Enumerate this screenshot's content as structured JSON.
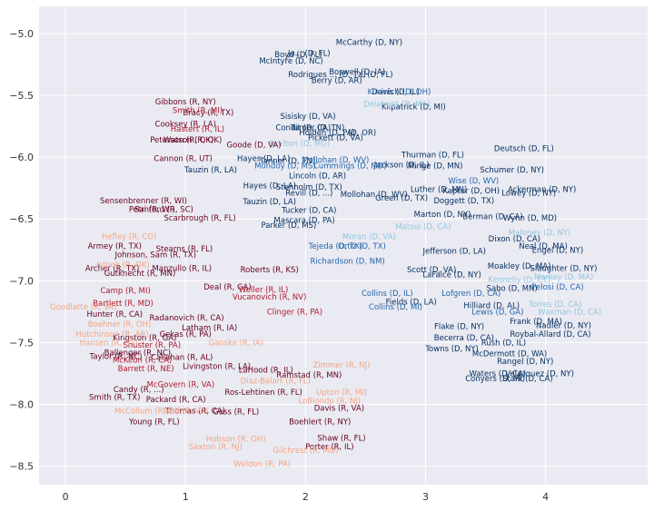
{
  "chart_data": {
    "type": "scatter",
    "title": "",
    "xlabel": "",
    "ylabel": "",
    "xlim": [
      -0.22,
      4.85
    ],
    "ylim": [
      -8.65,
      -4.78
    ],
    "xticks": [
      "0",
      "1",
      "2",
      "3",
      "4"
    ],
    "yticks": [
      "−5.0",
      "−5.5",
      "−6.0",
      "−6.5",
      "−7.0",
      "−7.5",
      "−8.0",
      "−8.5"
    ],
    "grid": true,
    "background": "#eaeaf2",
    "colors": {
      "dark_red": "#67001f",
      "mid_red": "#b2182b",
      "light_red": "#f4a582",
      "dark_blue": "#053061",
      "mid_blue": "#2166ac",
      "light_blue": "#92c5de"
    },
    "points": [
      {
        "label": "McCarthy (D, NY)",
        "x": 2.53,
        "y": -5.07,
        "color": "dark_blue"
      },
      {
        "label": "Boyd (D, FL)",
        "x": 1.94,
        "y": -5.17,
        "color": "dark_blue"
      },
      {
        "label": "Jo... (D, FL)",
        "x": 2.03,
        "y": -5.16,
        "color": "dark_blue"
      },
      {
        "label": "McIntyre (D, NC)",
        "x": 1.88,
        "y": -5.22,
        "color": "dark_blue"
      },
      {
        "label": "Rodrigues ... (D, TX)",
        "x": 2.18,
        "y": -5.33,
        "color": "dark_blue"
      },
      {
        "label": "Berry (D, AR)",
        "x": 2.26,
        "y": -5.38,
        "color": "dark_blue"
      },
      {
        "label": "Boswell (D, IA)",
        "x": 2.43,
        "y": -5.31,
        "color": "dark_blue"
      },
      {
        "label": "... (D, FL)",
        "x": 2.58,
        "y": -5.33,
        "color": "dark_blue"
      },
      {
        "label": "Davis (D, IL)",
        "x": 2.75,
        "y": -5.47,
        "color": "dark_blue"
      },
      {
        "label": "Kilpatrick (D, MI)",
        "x": 2.9,
        "y": -5.59,
        "color": "dark_blue"
      },
      {
        "label": "Sisisky (D, VA)",
        "x": 2.02,
        "y": -5.67,
        "color": "dark_blue"
      },
      {
        "label": "Condit (D, CA)",
        "x": 1.98,
        "y": -5.76,
        "color": "dark_blue"
      },
      {
        "label": "Turner (D, TN)",
        "x": 2.1,
        "y": -5.76,
        "color": "dark_blue"
      },
      {
        "label": "Holden (D, PA)",
        "x": 2.18,
        "y": -5.8,
        "color": "dark_blue"
      },
      {
        "label": "... (D, OR)",
        "x": 2.43,
        "y": -5.8,
        "color": "dark_blue"
      },
      {
        "label": "Pickett (D, VA)",
        "x": 2.25,
        "y": -5.84,
        "color": "dark_blue"
      },
      {
        "label": "Deutsch (D, FL)",
        "x": 3.82,
        "y": -5.93,
        "color": "dark_blue"
      },
      {
        "label": "Thurman (D, FL)",
        "x": 3.06,
        "y": -5.98,
        "color": "dark_blue"
      },
      {
        "label": "Hayes (D, LA)",
        "x": 1.65,
        "y": -6.01,
        "color": "dark_blue"
      },
      {
        "label": "Tanner (D, TN)",
        "x": 1.85,
        "y": -6.03,
        "color": "dark_blue"
      },
      {
        "label": "Minge (D, MN)",
        "x": 3.08,
        "y": -6.07,
        "color": "dark_blue"
      },
      {
        "label": "Jackson (D, IL)",
        "x": 2.8,
        "y": -6.06,
        "color": "dark_blue"
      },
      {
        "label": "Schumer (D, NY)",
        "x": 3.72,
        "y": -6.1,
        "color": "dark_blue"
      },
      {
        "label": "Tauzin (R, LA)",
        "x": 1.21,
        "y": -6.1,
        "color": "dark_blue"
      },
      {
        "label": "Lincoln (D, AR)",
        "x": 2.1,
        "y": -6.15,
        "color": "dark_blue"
      },
      {
        "label": "Hayes (D, LA)",
        "x": 1.7,
        "y": -6.23,
        "color": "dark_blue"
      },
      {
        "label": "Stenholm (D, TX)",
        "x": 2.03,
        "y": -6.24,
        "color": "dark_blue"
      },
      {
        "label": "Luther (D, MN)",
        "x": 3.11,
        "y": -6.26,
        "color": "dark_blue"
      },
      {
        "label": "Kaptur (D, OH)",
        "x": 3.38,
        "y": -6.27,
        "color": "dark_blue"
      },
      {
        "label": "Ackerman (D, NY)",
        "x": 3.97,
        "y": -6.26,
        "color": "dark_blue"
      },
      {
        "label": "Lowey (D, NY)",
        "x": 3.86,
        "y": -6.29,
        "color": "dark_blue"
      },
      {
        "label": "Revill (D, ...)",
        "x": 2.03,
        "y": -6.29,
        "color": "dark_blue"
      },
      {
        "label": "Mollohan (D, WV)",
        "x": 2.57,
        "y": -6.3,
        "color": "dark_blue"
      },
      {
        "label": "Green (D, TX)",
        "x": 2.8,
        "y": -6.33,
        "color": "dark_blue"
      },
      {
        "label": "Doggett (D, TX)",
        "x": 3.32,
        "y": -6.35,
        "color": "dark_blue"
      },
      {
        "label": "Tauzin (D, LA)",
        "x": 1.7,
        "y": -6.36,
        "color": "dark_blue"
      },
      {
        "label": "Tucker (D, CA)",
        "x": 2.03,
        "y": -6.43,
        "color": "dark_blue"
      },
      {
        "label": "Marton (D, NY)",
        "x": 3.14,
        "y": -6.46,
        "color": "dark_blue"
      },
      {
        "label": "Berman (D, CA)",
        "x": 3.56,
        "y": -6.48,
        "color": "dark_blue"
      },
      {
        "label": "Wynn (D, MD)",
        "x": 3.87,
        "y": -6.49,
        "color": "dark_blue"
      },
      {
        "label": "Mascara (D, PA)",
        "x": 1.99,
        "y": -6.51,
        "color": "dark_blue"
      },
      {
        "label": "Parker (D, MS)",
        "x": 1.86,
        "y": -6.55,
        "color": "dark_blue"
      },
      {
        "label": "Jefferson (D, LA)",
        "x": 3.24,
        "y": -6.76,
        "color": "dark_blue"
      },
      {
        "label": "Dixon (D, CA)",
        "x": 3.74,
        "y": -6.66,
        "color": "dark_blue"
      },
      {
        "label": "Neal (D, MA)",
        "x": 3.98,
        "y": -6.72,
        "color": "dark_blue"
      },
      {
        "label": "Engel (D, NY)",
        "x": 4.1,
        "y": -6.75,
        "color": "dark_blue"
      },
      {
        "label": "Scott (D, VA)",
        "x": 3.05,
        "y": -6.91,
        "color": "dark_blue"
      },
      {
        "label": "LaFalce (D, NY)",
        "x": 3.22,
        "y": -6.95,
        "color": "dark_blue"
      },
      {
        "label": "Moakley (D, MA)",
        "x": 3.78,
        "y": -6.88,
        "color": "dark_blue"
      },
      {
        "label": "Slaughter (D, NY)",
        "x": 4.15,
        "y": -6.9,
        "color": "dark_blue"
      },
      {
        "label": "Sabo (D, MN)",
        "x": 3.72,
        "y": -7.06,
        "color": "dark_blue"
      },
      {
        "label": "Fields (D, LA)",
        "x": 2.88,
        "y": -7.17,
        "color": "dark_blue"
      },
      {
        "label": "Hilliard (D, AL)",
        "x": 3.55,
        "y": -7.2,
        "color": "dark_blue"
      },
      {
        "label": "Frank (D, MA)",
        "x": 3.92,
        "y": -7.33,
        "color": "dark_blue"
      },
      {
        "label": "Nadler (D, NY)",
        "x": 4.15,
        "y": -7.36,
        "color": "dark_blue"
      },
      {
        "label": "Flake (D, NY)",
        "x": 3.28,
        "y": -7.37,
        "color": "dark_blue"
      },
      {
        "label": "Becerra (D, CA)",
        "x": 3.32,
        "y": -7.46,
        "color": "dark_blue"
      },
      {
        "label": "Roybal-Allard (D, CA)",
        "x": 4.04,
        "y": -7.43,
        "color": "dark_blue"
      },
      {
        "label": "Towns (D, NY)",
        "x": 3.22,
        "y": -7.55,
        "color": "dark_blue"
      },
      {
        "label": "Rush (D, IL)",
        "x": 3.65,
        "y": -7.5,
        "color": "dark_blue"
      },
      {
        "label": "McDermott (D, WA)",
        "x": 3.7,
        "y": -7.59,
        "color": "dark_blue"
      },
      {
        "label": "Rangel (D, NY)",
        "x": 3.83,
        "y": -7.65,
        "color": "dark_blue"
      },
      {
        "label": "Waters (D, CA)",
        "x": 3.6,
        "y": -7.75,
        "color": "dark_blue"
      },
      {
        "label": "Conyers (D, MI)",
        "x": 3.58,
        "y": -7.79,
        "color": "dark_blue"
      },
      {
        "label": "Velazquez (D, NY)",
        "x": 3.95,
        "y": -7.75,
        "color": "dark_blue"
      },
      {
        "label": "Stark (D, CA)",
        "x": 3.85,
        "y": -7.79,
        "color": "dark_blue"
      },
      {
        "label": "Kucinich (D, OH)",
        "x": 2.78,
        "y": -5.47,
        "color": "mid_blue"
      },
      {
        "label": "Mondoy (D, MS)",
        "x": 1.83,
        "y": -6.07,
        "color": "mid_blue"
      },
      {
        "label": "Cummings (D, MD)",
        "x": 2.37,
        "y": -6.07,
        "color": "mid_blue"
      },
      {
        "label": "Mollohan (D, WV)",
        "x": 2.25,
        "y": -6.02,
        "color": "mid_blue"
      },
      {
        "label": "Wise (D, WV)",
        "x": 3.4,
        "y": -6.19,
        "color": "mid_blue"
      },
      {
        "label": "Tejeda (D, TX)",
        "x": 2.25,
        "y": -6.72,
        "color": "mid_blue"
      },
      {
        "label": "Ortiz (D, TX)",
        "x": 2.47,
        "y": -6.72,
        "color": "mid_blue"
      },
      {
        "label": "Richardson (D, NM)",
        "x": 2.35,
        "y": -6.84,
        "color": "mid_blue"
      },
      {
        "label": "Collins (D, IL)",
        "x": 2.68,
        "y": -7.1,
        "color": "mid_blue"
      },
      {
        "label": "Collins (D, MI)",
        "x": 2.75,
        "y": -7.21,
        "color": "mid_blue"
      },
      {
        "label": "Lofgren (D, CA)",
        "x": 3.38,
        "y": -7.1,
        "color": "mid_blue"
      },
      {
        "label": "Pelosi (D, CA)",
        "x": 4.1,
        "y": -7.05,
        "color": "mid_blue"
      },
      {
        "label": "Lewis (D, GA)",
        "x": 3.6,
        "y": -7.25,
        "color": "mid_blue"
      },
      {
        "label": "Matsui (D, CA)",
        "x": 2.98,
        "y": -6.56,
        "color": "light_blue"
      },
      {
        "label": "Kennelly (D, CT)",
        "x": 3.78,
        "y": -6.99,
        "color": "light_blue"
      },
      {
        "label": "Markey (D, MA)",
        "x": 4.15,
        "y": -6.97,
        "color": "light_blue"
      },
      {
        "label": "Waxman (D, CA)",
        "x": 4.2,
        "y": -7.25,
        "color": "light_blue"
      },
      {
        "label": "Torres (D, CA)",
        "x": 4.08,
        "y": -7.19,
        "color": "light_blue"
      },
      {
        "label": "Maloney (D, NY)",
        "x": 3.95,
        "y": -6.61,
        "color": "light_blue"
      },
      {
        "label": "Delahunt (D, MA)",
        "x": 2.76,
        "y": -5.57,
        "color": "light_blue"
      },
      {
        "label": "Skelton (D, MO)",
        "x": 1.95,
        "y": -5.89,
        "color": "light_blue"
      },
      {
        "label": "Moran (D, VA)",
        "x": 2.53,
        "y": -6.64,
        "color": "light_blue"
      },
      {
        "label": "Gibbons (R, NY)",
        "x": 1.0,
        "y": -5.55,
        "color": "dark_red"
      },
      {
        "label": "Bracy (R, TX)",
        "x": 1.19,
        "y": -5.64,
        "color": "dark_red"
      },
      {
        "label": "Cooksey (R, LA)",
        "x": 1.0,
        "y": -5.73,
        "color": "dark_red"
      },
      {
        "label": "Peterson (R, OK)",
        "x": 0.97,
        "y": -5.86,
        "color": "dark_red"
      },
      {
        "label": "Watson (R, OK)",
        "x": 1.06,
        "y": -5.86,
        "color": "dark_red"
      },
      {
        "label": "Goode (D, VA)",
        "x": 1.57,
        "y": -5.9,
        "color": "dark_red"
      },
      {
        "label": "Cannon (R, UT)",
        "x": 0.98,
        "y": -6.01,
        "color": "dark_red"
      },
      {
        "label": "Sensenbrenner (R, WI)",
        "x": 0.65,
        "y": -6.35,
        "color": "dark_red"
      },
      {
        "label": "Petri (R, WI)",
        "x": 0.72,
        "y": -6.42,
        "color": "dark_red"
      },
      {
        "label": "Sanford (R, SC)",
        "x": 0.82,
        "y": -6.42,
        "color": "dark_red"
      },
      {
        "label": "Scarbrough (R, FL)",
        "x": 1.12,
        "y": -6.49,
        "color": "dark_red"
      },
      {
        "label": "Armey (R, TX)",
        "x": 0.41,
        "y": -6.72,
        "color": "dark_red"
      },
      {
        "label": "Stearns (R, FL)",
        "x": 0.99,
        "y": -6.74,
        "color": "dark_red"
      },
      {
        "label": "Johnson, Sam (R, TX)",
        "x": 0.75,
        "y": -6.79,
        "color": "dark_red"
      },
      {
        "label": "Archer (R, TX)",
        "x": 0.39,
        "y": -6.9,
        "color": "dark_red"
      },
      {
        "label": "Manzullo (R, IL)",
        "x": 0.97,
        "y": -6.9,
        "color": "dark_red"
      },
      {
        "label": "Gutknecht (R, MN)",
        "x": 0.62,
        "y": -6.94,
        "color": "dark_red"
      },
      {
        "label": "Roberts (R, KS)",
        "x": 1.7,
        "y": -6.91,
        "color": "dark_red"
      },
      {
        "label": "Deal (R, GA)",
        "x": 1.35,
        "y": -7.05,
        "color": "dark_red"
      },
      {
        "label": "Hunter (R, CA)",
        "x": 0.41,
        "y": -7.27,
        "color": "dark_red"
      },
      {
        "label": "Radanovich (R, CA)",
        "x": 1.01,
        "y": -7.3,
        "color": "dark_red"
      },
      {
        "label": "Latham (R, IA)",
        "x": 1.2,
        "y": -7.38,
        "color": "dark_red"
      },
      {
        "label": "Kingston (R, GA)",
        "x": 0.66,
        "y": -7.46,
        "color": "dark_red"
      },
      {
        "label": "Gekas (R, PA)",
        "x": 1.0,
        "y": -7.43,
        "color": "dark_red"
      },
      {
        "label": "Ballenger (R, NC)",
        "x": 0.6,
        "y": -7.58,
        "color": "dark_red"
      },
      {
        "label": "Callahan (R, AL)",
        "x": 0.97,
        "y": -7.62,
        "color": "dark_red"
      },
      {
        "label": "Taylor (R, NC)",
        "x": 0.42,
        "y": -7.61,
        "color": "dark_red"
      },
      {
        "label": "Livingston (R, LA)",
        "x": 1.26,
        "y": -7.69,
        "color": "dark_red"
      },
      {
        "label": "LaHood (R, IL)",
        "x": 1.67,
        "y": -7.72,
        "color": "dark_red"
      },
      {
        "label": "Ramstad (R, MN)",
        "x": 2.03,
        "y": -7.76,
        "color": "dark_red"
      },
      {
        "label": "Ros-Lehtinen (R, FL)",
        "x": 1.65,
        "y": -7.9,
        "color": "dark_red"
      },
      {
        "label": "Packard (R, CA)",
        "x": 0.92,
        "y": -7.96,
        "color": "dark_red"
      },
      {
        "label": "Smith (R, TX)",
        "x": 0.41,
        "y": -7.94,
        "color": "dark_red"
      },
      {
        "label": "Candy (R, ...)",
        "x": 0.61,
        "y": -7.88,
        "color": "dark_red"
      },
      {
        "label": "Thomas (R, CA)",
        "x": 1.08,
        "y": -8.05,
        "color": "dark_red"
      },
      {
        "label": "Goss (R, FL)",
        "x": 1.42,
        "y": -8.06,
        "color": "dark_red"
      },
      {
        "label": "Davis (R, VA)",
        "x": 2.28,
        "y": -8.03,
        "color": "dark_red"
      },
      {
        "label": "Young (R, FL)",
        "x": 0.74,
        "y": -8.14,
        "color": "dark_red"
      },
      {
        "label": "Boehlert (R, NY)",
        "x": 2.12,
        "y": -8.14,
        "color": "dark_red"
      },
      {
        "label": "Shaw (R, FL)",
        "x": 2.3,
        "y": -8.27,
        "color": "dark_red"
      },
      {
        "label": "Porter (R, IL)",
        "x": 2.2,
        "y": -8.34,
        "color": "dark_red"
      },
      {
        "label": "Smith (R, MI)",
        "x": 1.1,
        "y": -5.62,
        "color": "mid_red"
      },
      {
        "label": "Hastert (R, IL)",
        "x": 1.1,
        "y": -5.77,
        "color": "mid_red"
      },
      {
        "label": "Camp (R, MI)",
        "x": 0.5,
        "y": -7.08,
        "color": "mid_red"
      },
      {
        "label": "Bartlett (R, MD)",
        "x": 0.48,
        "y": -7.18,
        "color": "mid_red"
      },
      {
        "label": "Shuster (R, PA)",
        "x": 0.72,
        "y": -7.52,
        "color": "mid_red"
      },
      {
        "label": "McKeon (R, CA)",
        "x": 0.64,
        "y": -7.64,
        "color": "mid_red"
      },
      {
        "label": "Barrett (R, NE)",
        "x": 0.67,
        "y": -7.71,
        "color": "mid_red"
      },
      {
        "label": "McGovern (R, VA)",
        "x": 0.96,
        "y": -7.84,
        "color": "mid_red"
      },
      {
        "label": "Weller (R, IL)",
        "x": 1.65,
        "y": -7.07,
        "color": "mid_red"
      },
      {
        "label": "Vucanovich (R, NV)",
        "x": 1.7,
        "y": -7.13,
        "color": "mid_red"
      },
      {
        "label": "Clinger (R, PA)",
        "x": 1.91,
        "y": -7.25,
        "color": "mid_red"
      },
      {
        "label": "Hefley (R, CO)",
        "x": 0.53,
        "y": -6.64,
        "color": "light_red"
      },
      {
        "label": "Istook (R, OK)",
        "x": 0.48,
        "y": -6.87,
        "color": "light_red"
      },
      {
        "label": "Hutchinson (R, AR)",
        "x": 0.39,
        "y": -7.43,
        "color": "light_red"
      },
      {
        "label": "Hansen (R, UT)",
        "x": 0.36,
        "y": -7.5,
        "color": "light_red"
      },
      {
        "label": "Goodlatte (R, VA)",
        "x": 0.15,
        "y": -7.21,
        "color": "light_red"
      },
      {
        "label": "Boehner (R, OH)",
        "x": 0.45,
        "y": -7.35,
        "color": "light_red"
      },
      {
        "label": "Ganske (R, IA)",
        "x": 1.42,
        "y": -7.5,
        "color": "light_red"
      },
      {
        "label": "Zimmer (R, NJ)",
        "x": 2.3,
        "y": -7.68,
        "color": "light_red"
      },
      {
        "label": "Upton (R, MI)",
        "x": 2.3,
        "y": -7.9,
        "color": "light_red"
      },
      {
        "label": "Diaz-Balart (R, FL)",
        "x": 1.75,
        "y": -7.81,
        "color": "light_red"
      },
      {
        "label": "Hobson (R, OH)",
        "x": 1.42,
        "y": -8.28,
        "color": "light_red"
      },
      {
        "label": "Saxton (R, NJ)",
        "x": 1.25,
        "y": -8.34,
        "color": "light_red"
      },
      {
        "label": "Weldon (R, PA)",
        "x": 1.64,
        "y": -8.48,
        "color": "light_red"
      },
      {
        "label": "Gilchrest (R, MD)",
        "x": 2.0,
        "y": -8.37,
        "color": "light_red"
      },
      {
        "label": "McCollum (R, FL)",
        "x": 0.68,
        "y": -8.05,
        "color": "light_red"
      },
      {
        "label": "LoBiondo (R, NJ)",
        "x": 2.2,
        "y": -7.97,
        "color": "light_red"
      },
      {
        "label": "Wolf (R, VA)",
        "x": 1.0,
        "y": -8.05,
        "color": "light_red"
      }
    ]
  }
}
